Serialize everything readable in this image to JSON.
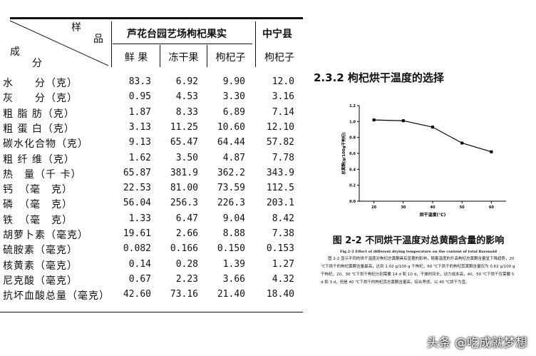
{
  "table": {
    "corner": {
      "top1": "样",
      "top2": "品",
      "bottom1": "成",
      "bottom2": "分"
    },
    "group1": "芦花台园艺场枸杞果实",
    "group2": "中宁县",
    "columns": [
      "鲜 果",
      "冻干果",
      "枸杞子",
      "枸杞子"
    ],
    "rows": [
      {
        "label": "水　　分（克）",
        "values": [
          "83.3",
          "6.92",
          "9.90",
          "12.0"
        ]
      },
      {
        "label": "灰　　分（克）",
        "values": [
          "0.95",
          "4.53",
          "3.30",
          "3.16"
        ]
      },
      {
        "label": "粗 脂 肪（克）",
        "values": [
          "1.87",
          "8.33",
          "6.89",
          "7.14"
        ]
      },
      {
        "label": "粗 蛋 白（克）",
        "values": [
          "3.13",
          "11.25",
          "10.60",
          "12.10"
        ]
      },
      {
        "label": "碳水化合物（克）",
        "values": [
          "9.13",
          "65.47",
          "64.44",
          "57.82"
        ]
      },
      {
        "label": "粗 纤 维（克）",
        "values": [
          "1.62",
          "3.50",
          "4.87",
          "7.78"
        ]
      },
      {
        "label": "热　量（千 卡）",
        "values": [
          "65.87",
          "381.9",
          "362.2",
          "343.9"
        ]
      },
      {
        "label": "钙　（毫　克）",
        "values": [
          "22.53",
          "81.00",
          "73.59",
          "112.5"
        ]
      },
      {
        "label": "磷　（毫　克）",
        "values": [
          "56.04",
          "256.3",
          "226.3",
          "203.1"
        ]
      },
      {
        "label": "铁　（毫　克）",
        "values": [
          "1.33",
          "6.47",
          "9.04",
          "8.42"
        ]
      },
      {
        "label": "胡萝卜素（毫克）",
        "values": [
          "19.61",
          "2.66",
          "8.88",
          "7.38"
        ]
      },
      {
        "label": "硫胺素（毫克）",
        "values": [
          "0.082",
          "0.166",
          "0.150",
          "0.153"
        ]
      },
      {
        "label": "核黄素（毫克）",
        "values": [
          "0.14",
          "0.28",
          "1.39",
          "1.27"
        ]
      },
      {
        "label": "尼克酸（毫克）",
        "values": [
          "0.67",
          "2.23",
          "3.66",
          "4.32"
        ]
      },
      {
        "label": "抗坏血酸总量（毫克）",
        "values": [
          "42.60",
          "73.16",
          "21.40",
          "18.40"
        ]
      }
    ]
  },
  "doc": {
    "section": "2.3.2 枸杞烘干温度的选择",
    "caption": "图 2-2  不同烘干温度对总黄酮含量的影响",
    "caption_en": "Fig.2-2 Effect of different drying temperature on the content of total flavonoid",
    "body": "图 2-2 显示不同的烘干温度对枸杞总黄酮具有显著的影响，随着温度的升高枸杞总黄酮含量呈下降趋势，20 ℃下烘干的枸杞黄酮含量最高，达到 1.02 g/100 g 干枸杞，60 ℃下烘干的枸杞其黄酮含量仅为 0.62 g/100 g 干枸杞，20、30 ℃下烘干枸杞分别需要 14 d 和 10 d，干燥时间长，动力成本高，40、50 ℃下烘干仅需要 5 d 和 3 d，但是 40 ℃下烘干的枸杞其总黄酮含量高，综合考虑，以 40 ℃烘干为宜。"
  },
  "chart_data": {
    "type": "line",
    "x": [
      20,
      30,
      40,
      50,
      60
    ],
    "values": [
      1.02,
      1.01,
      0.93,
      0.73,
      0.62
    ],
    "xlabel": "烘干温度(℃)",
    "ylabel": "总黄酮(g/100g干枸杞)",
    "xticks": [
      "20",
      "30",
      "40",
      "50",
      "60"
    ],
    "yticks": [
      "0.0",
      "0.2",
      "0.4",
      "0.6",
      "0.8",
      "1.0",
      "1.2"
    ],
    "xlim": [
      15,
      65
    ],
    "ylim": [
      0,
      1.2
    ],
    "grid": false
  },
  "watermark": "头条 @吃成就梦想"
}
